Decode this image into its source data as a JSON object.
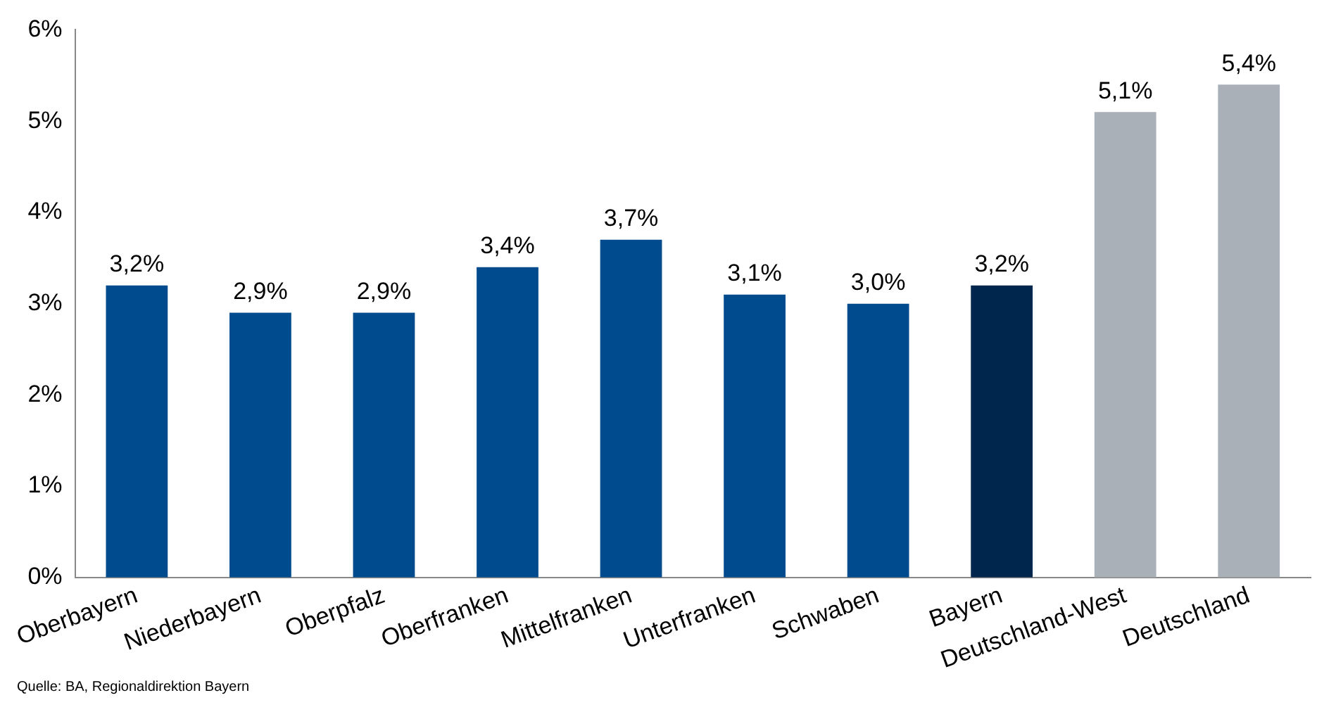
{
  "chart_data": {
    "type": "bar",
    "categories": [
      "Oberbayern",
      "Niederbayern",
      "Oberpfalz",
      "Oberfranken",
      "Mittelfranken",
      "Unterfranken",
      "Schwaben",
      "Bayern",
      "Deutschland-West",
      "Deutschland"
    ],
    "values": [
      3.2,
      2.9,
      2.9,
      3.4,
      3.7,
      3.1,
      3.0,
      3.2,
      5.1,
      5.4
    ],
    "colors": [
      "#004b8d",
      "#004b8d",
      "#004b8d",
      "#004b8d",
      "#004b8d",
      "#004b8d",
      "#004b8d",
      "#00264d",
      "#a9b0b8",
      "#a9b0b8"
    ],
    "value_labels": [
      "3,2%",
      "2,9%",
      "2,9%",
      "3,4%",
      "3,7%",
      "3,1%",
      "3,0%",
      "3,2%",
      "5,1%",
      "5,4%"
    ],
    "ylim": [
      0,
      6
    ],
    "yticks": [
      {
        "value": 0,
        "label": "0%"
      },
      {
        "value": 1,
        "label": "1%"
      },
      {
        "value": 2,
        "label": "2%"
      },
      {
        "value": 3,
        "label": "3%"
      },
      {
        "value": 4,
        "label": "4%"
      },
      {
        "value": 5,
        "label": "5%"
      },
      {
        "value": 6,
        "label": "6%"
      }
    ],
    "grid": false,
    "legend": false,
    "annotations": [
      "Quelle: BA, Regionaldirektion Bayern"
    ]
  }
}
